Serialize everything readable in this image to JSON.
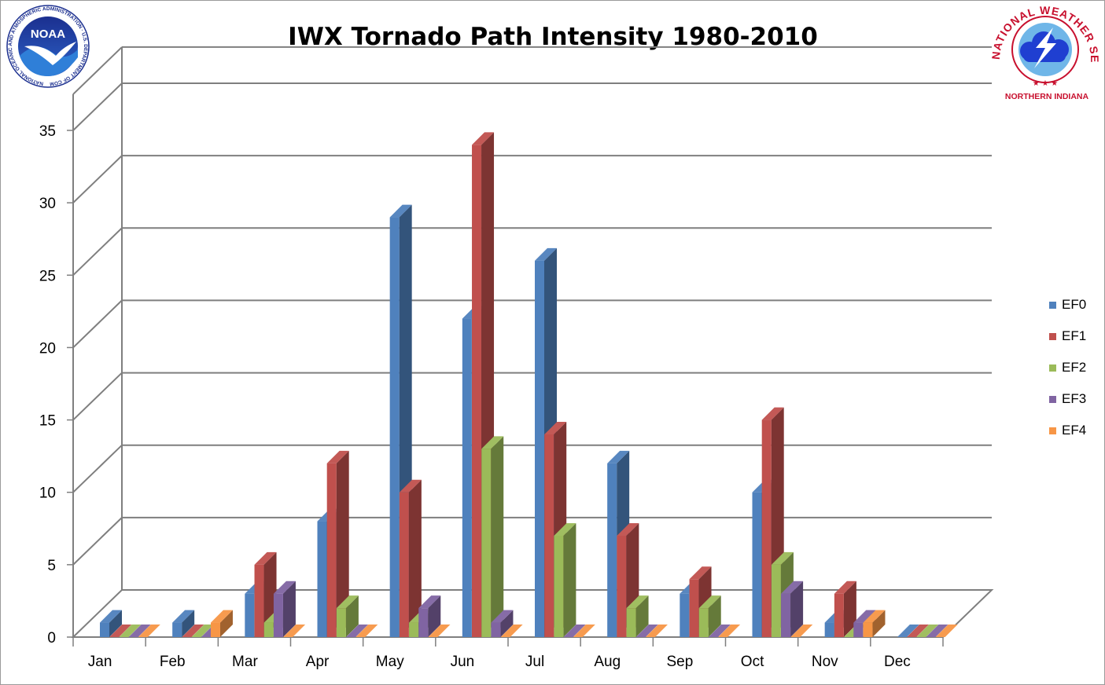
{
  "chart_data": {
    "type": "bar",
    "title": "IWX Tornado Path Intensity 1980-2010",
    "categories": [
      "Jan",
      "Feb",
      "Mar",
      "Apr",
      "May",
      "Jun",
      "Jul",
      "Aug",
      "Sep",
      "Oct",
      "Nov",
      "Dec"
    ],
    "series": [
      {
        "name": "EF0",
        "color": "#4f81bd",
        "values": [
          1,
          1,
          3,
          8,
          29,
          22,
          26,
          12,
          3,
          10,
          1,
          0
        ]
      },
      {
        "name": "EF1",
        "color": "#c0504d",
        "values": [
          0,
          0,
          5,
          12,
          10,
          34,
          14,
          7,
          4,
          15,
          3,
          0
        ]
      },
      {
        "name": "EF2",
        "color": "#9bbb59",
        "values": [
          0,
          0,
          1,
          2,
          1,
          13,
          7,
          2,
          2,
          5,
          0,
          0
        ]
      },
      {
        "name": "EF3",
        "color": "#8064a2",
        "values": [
          0,
          0,
          3,
          0,
          2,
          1,
          0,
          0,
          0,
          3,
          1,
          0
        ]
      },
      {
        "name": "EF4",
        "color": "#f79646",
        "values": [
          0,
          1,
          0,
          0,
          0,
          0,
          0,
          0,
          0,
          0,
          1,
          0
        ]
      }
    ],
    "y_ticks": [
      "0",
      "5",
      "10",
      "15",
      "20",
      "25",
      "30",
      "35"
    ],
    "ylim": [
      0,
      35
    ],
    "legend_position": "right",
    "grid": true
  },
  "logos": {
    "noara": {
      "name": "NOAA",
      "ring": "NATIONAL OCEANIC AND ATMOSPHERIC ADMINISTRATION · U.S. DEPARTMENT OF COMMERCE",
      "icon": "noaa-logo-icon"
    },
    "nws": {
      "ring": "NATIONAL WEATHER SERVICE",
      "caption": "NORTHERN INDIANA",
      "icon": "nws-logo-icon"
    }
  }
}
